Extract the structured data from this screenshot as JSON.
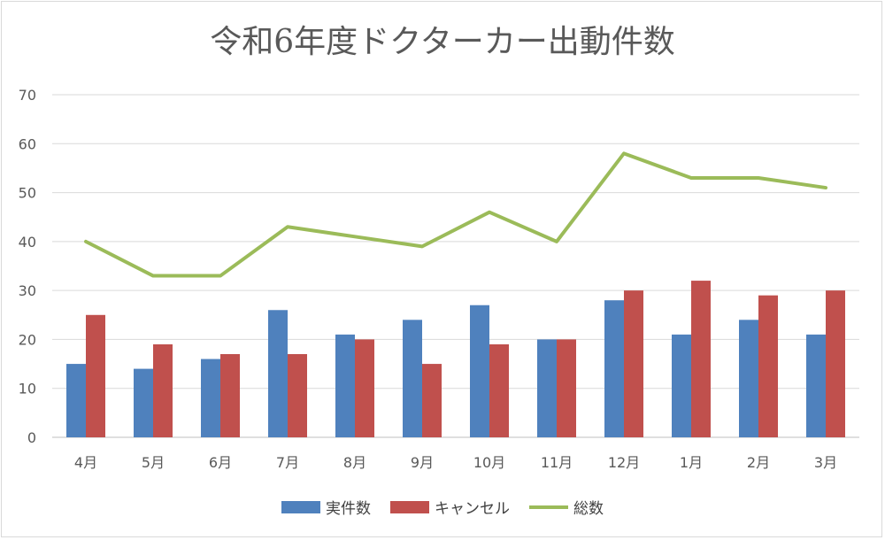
{
  "chart_data": {
    "type": "bar",
    "title": "令和6年度ドクターカー出動件数",
    "categories": [
      "4月",
      "5月",
      "6月",
      "7月",
      "8月",
      "9月",
      "10月",
      "11月",
      "12月",
      "1月",
      "2月",
      "3月"
    ],
    "ylim": [
      0,
      70
    ],
    "yticks": [
      0,
      10,
      20,
      30,
      40,
      50,
      60,
      70
    ],
    "grid": true,
    "legend": "bottom",
    "series": [
      {
        "name": "実件数",
        "kind": "bar",
        "color": "#4F81BD",
        "values": [
          15,
          14,
          16,
          26,
          21,
          24,
          27,
          20,
          28,
          21,
          24,
          21
        ]
      },
      {
        "name": "キャンセル",
        "kind": "bar",
        "color": "#C0504D",
        "values": [
          25,
          19,
          17,
          17,
          20,
          15,
          19,
          20,
          30,
          32,
          29,
          30
        ]
      },
      {
        "name": "総数",
        "kind": "line",
        "color": "#9BBB59",
        "values": [
          40,
          33,
          33,
          43,
          41,
          39,
          46,
          40,
          58,
          53,
          53,
          51
        ]
      }
    ]
  }
}
